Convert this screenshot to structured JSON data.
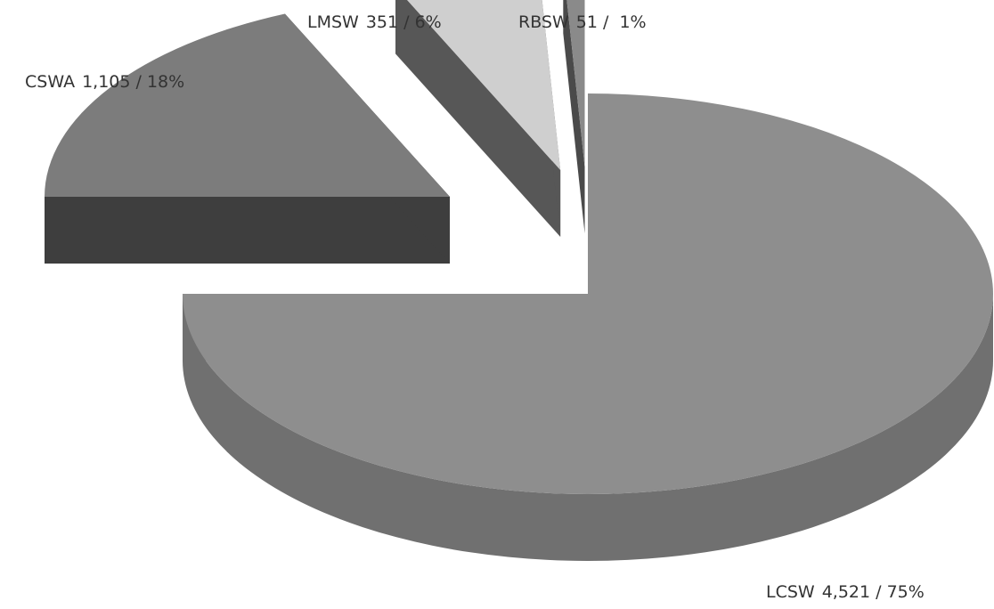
{
  "chart_data": {
    "type": "pie3d",
    "categories": [
      "LCSW",
      "CSWA",
      "LMSW",
      "RBSW"
    ],
    "values": [
      4521,
      1105,
      351,
      51
    ],
    "value_labels": [
      "4,521 / 75%",
      "1,105 / 18%",
      "351 / 6%",
      "51 /  1%"
    ],
    "colors": [
      "#8e8e8e",
      "#7c7c7c",
      "#cfcfcf",
      "#8a8a8a"
    ],
    "side_colors": [
      "#707070",
      "#3e3e3e",
      "#575757",
      "#4a4a4a"
    ]
  }
}
